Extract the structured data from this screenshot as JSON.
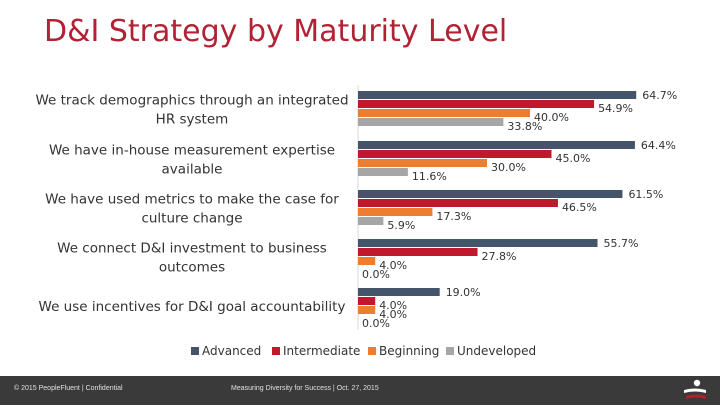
{
  "title": "D&I Strategy by Maturity Level",
  "footer": {
    "left": "© 2015 PeopleFluent | Confidential",
    "center": "Measuring Diversity for Success | Oct. 27, 2015"
  },
  "colors": {
    "title": "#b22234",
    "Advanced": "#44546a",
    "Intermediate": "#c0192d",
    "Beginning": "#ed7d31",
    "Undeveloped": "#a6a6a6",
    "footer_bg": "#3a3a3a"
  },
  "chart_data": {
    "type": "bar",
    "orientation": "horizontal",
    "categories": [
      "We track demographics through an integrated HR system",
      "We have in-house measurement expertise available",
      "We have used metrics to make the case for culture change",
      "We connect D&I investment to business outcomes",
      "We use incentives for D&I goal accountability"
    ],
    "series": [
      {
        "name": "Advanced",
        "values": [
          64.7,
          64.4,
          61.5,
          55.7,
          19.0
        ]
      },
      {
        "name": "Intermediate",
        "values": [
          54.9,
          45.0,
          46.5,
          27.8,
          4.0
        ]
      },
      {
        "name": "Beginning",
        "values": [
          40.0,
          30.0,
          17.3,
          4.0,
          4.0
        ]
      },
      {
        "name": "Undeveloped",
        "values": [
          33.8,
          11.6,
          5.9,
          0.0,
          0.0
        ]
      }
    ],
    "data_labels": [
      [
        "64.7%",
        "54.9%",
        "40.0%",
        "33.8%"
      ],
      [
        "64.4%",
        "45.0%",
        "30.0%",
        "11.6%"
      ],
      [
        "61.5%",
        "46.5%",
        "17.3%",
        "5.9%"
      ],
      [
        "55.7%",
        "27.8%",
        "4.0%",
        "0.0%"
      ],
      [
        "19.0%",
        "4.0%",
        "4.0%",
        "0.0%"
      ]
    ],
    "xlim": [
      0,
      70
    ],
    "grid": false,
    "legend": "bottom"
  }
}
